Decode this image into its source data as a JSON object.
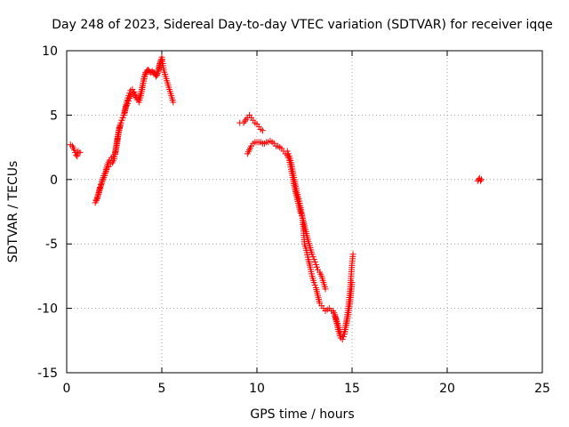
{
  "chart_data": {
    "type": "scatter",
    "title": "Day 248 of 2023, Sidereal Day-to-day VTEC variation (SDTVAR) for receiver iqqe",
    "xlabel": "GPS time / hours",
    "ylabel": "SDTVAR / TECUs",
    "xlim": [
      0,
      25
    ],
    "ylim": [
      -15,
      10
    ],
    "xticks": [
      0,
      5,
      10,
      15,
      20,
      25
    ],
    "yticks": [
      -15,
      -10,
      -5,
      0,
      5,
      10
    ],
    "xtick_labels": [
      "0",
      "5",
      "10",
      "15",
      "20",
      "25"
    ],
    "ytick_labels": [
      "-15",
      "-10",
      "-5",
      "0",
      "5",
      "10"
    ],
    "grid": true,
    "marker": "+",
    "color": "#ff0000",
    "series": [
      {
        "name": "SDTVAR",
        "tracks": [
          [
            [
              0.2,
              2.7
            ],
            [
              0.3,
              2.6
            ],
            [
              0.4,
              2.3
            ],
            [
              0.5,
              1.9
            ],
            [
              0.55,
              1.8
            ],
            [
              0.6,
              2.2
            ],
            [
              0.7,
              2.1
            ]
          ],
          [
            [
              1.5,
              -1.8
            ],
            [
              1.6,
              -1.5
            ],
            [
              1.7,
              -1.0
            ],
            [
              1.8,
              -0.5
            ],
            [
              1.9,
              0.0
            ],
            [
              2.0,
              0.3
            ],
            [
              2.1,
              0.8
            ],
            [
              2.2,
              1.0
            ],
            [
              2.3,
              1.2
            ],
            [
              2.4,
              1.3
            ],
            [
              2.5,
              1.6
            ],
            [
              2.6,
              2.6
            ],
            [
              2.7,
              3.5
            ],
            [
              2.8,
              4.2
            ],
            [
              2.9,
              4.6
            ],
            [
              3.0,
              5.0
            ],
            [
              3.1,
              5.6
            ],
            [
              3.2,
              5.9
            ],
            [
              3.3,
              6.3
            ],
            [
              3.4,
              6.6
            ],
            [
              3.5,
              6.7
            ],
            [
              3.6,
              6.5
            ],
            [
              3.7,
              6.2
            ],
            [
              3.8,
              6.0
            ],
            [
              3.9,
              6.5
            ],
            [
              4.0,
              7.3
            ],
            [
              4.1,
              8.0
            ],
            [
              4.2,
              8.4
            ],
            [
              4.3,
              8.5
            ],
            [
              4.4,
              8.3
            ],
            [
              4.5,
              8.4
            ],
            [
              4.6,
              8.3
            ],
            [
              4.7,
              8.0
            ],
            [
              4.8,
              8.4
            ],
            [
              4.9,
              9.0
            ],
            [
              5.0,
              9.5
            ],
            [
              5.05,
              9.0
            ],
            [
              5.1,
              8.5
            ],
            [
              5.2,
              8.0
            ],
            [
              5.3,
              7.5
            ],
            [
              5.4,
              7.0
            ],
            [
              5.5,
              6.5
            ],
            [
              5.6,
              6.0
            ]
          ],
          [
            [
              1.55,
              -1.6
            ],
            [
              1.65,
              -1.2
            ],
            [
              1.75,
              -0.6
            ],
            [
              1.85,
              -0.2
            ],
            [
              1.95,
              0.3
            ],
            [
              2.05,
              0.6
            ],
            [
              2.15,
              1.2
            ],
            [
              2.25,
              1.5
            ],
            [
              2.35,
              1.7
            ],
            [
              2.45,
              1.8
            ],
            [
              2.55,
              2.0
            ],
            [
              2.65,
              2.8
            ],
            [
              2.75,
              3.8
            ],
            [
              2.85,
              4.4
            ],
            [
              2.95,
              4.8
            ],
            [
              3.05,
              5.2
            ],
            [
              3.15,
              6.0
            ],
            [
              3.25,
              6.5
            ],
            [
              3.35,
              6.9
            ],
            [
              3.45,
              7.0
            ],
            [
              3.55,
              6.8
            ],
            [
              3.65,
              6.4
            ],
            [
              3.75,
              6.2
            ],
            [
              3.85,
              6.5
            ],
            [
              3.95,
              7.0
            ],
            [
              4.05,
              7.8
            ],
            [
              4.15,
              8.3
            ],
            [
              4.25,
              8.5
            ],
            [
              4.35,
              8.4
            ],
            [
              4.55,
              8.3
            ],
            [
              4.75,
              8.1
            ],
            [
              4.85,
              8.6
            ],
            [
              4.95,
              9.2
            ],
            [
              5.0,
              9.3
            ]
          ],
          [
            [
              9.1,
              4.4
            ],
            [
              9.3,
              4.4
            ],
            [
              9.5,
              4.8
            ],
            [
              9.6,
              5.0
            ],
            [
              9.7,
              4.8
            ],
            [
              9.8,
              4.6
            ],
            [
              9.9,
              4.4
            ],
            [
              10.0,
              4.3
            ],
            [
              10.1,
              4.1
            ],
            [
              10.2,
              3.9
            ],
            [
              10.3,
              3.8
            ]
          ],
          [
            [
              9.5,
              2.0
            ],
            [
              9.6,
              2.3
            ],
            [
              9.7,
              2.6
            ],
            [
              9.8,
              2.8
            ],
            [
              9.9,
              2.9
            ],
            [
              10.0,
              2.9
            ],
            [
              10.1,
              2.9
            ],
            [
              10.2,
              2.9
            ],
            [
              10.3,
              2.8
            ],
            [
              10.4,
              2.8
            ],
            [
              10.5,
              2.9
            ],
            [
              10.6,
              2.9
            ],
            [
              10.7,
              3.0
            ],
            [
              10.8,
              2.9
            ],
            [
              10.9,
              2.8
            ],
            [
              11.0,
              2.6
            ],
            [
              11.1,
              2.6
            ],
            [
              11.2,
              2.5
            ],
            [
              11.3,
              2.4
            ],
            [
              11.4,
              2.2
            ],
            [
              11.5,
              2.0
            ],
            [
              11.6,
              1.9
            ],
            [
              11.7,
              1.5
            ],
            [
              11.8,
              0.8
            ],
            [
              11.9,
              0.0
            ],
            [
              12.0,
              -0.8
            ],
            [
              12.1,
              -1.4
            ],
            [
              12.2,
              -2.0
            ],
            [
              12.3,
              -2.6
            ],
            [
              12.4,
              -3.0
            ],
            [
              12.5,
              -3.6
            ],
            [
              12.6,
              -4.2
            ],
            [
              12.7,
              -4.8
            ],
            [
              12.8,
              -5.3
            ],
            [
              12.9,
              -5.8
            ],
            [
              13.0,
              -6.2
            ],
            [
              13.1,
              -6.6
            ],
            [
              13.2,
              -7.0
            ],
            [
              13.3,
              -7.2
            ],
            [
              13.4,
              -7.5
            ],
            [
              13.5,
              -8.0
            ],
            [
              13.6,
              -8.5
            ]
          ],
          [
            [
              11.6,
              2.2
            ],
            [
              11.7,
              1.8
            ],
            [
              11.8,
              1.3
            ],
            [
              11.9,
              0.5
            ],
            [
              12.0,
              -0.2
            ],
            [
              12.1,
              -1.0
            ],
            [
              12.2,
              -1.5
            ],
            [
              12.3,
              -2.2
            ],
            [
              12.4,
              -3.0
            ],
            [
              12.45,
              -4.0
            ],
            [
              12.5,
              -5.0
            ],
            [
              12.6,
              -5.5
            ],
            [
              12.7,
              -6.2
            ],
            [
              12.8,
              -6.8
            ],
            [
              12.9,
              -7.5
            ],
            [
              13.0,
              -8.0
            ],
            [
              13.1,
              -8.4
            ],
            [
              13.2,
              -9.0
            ],
            [
              13.3,
              -9.6
            ],
            [
              13.4,
              -9.8
            ],
            [
              13.5,
              -10.0
            ],
            [
              13.6,
              -10.2
            ],
            [
              13.7,
              -10.1
            ],
            [
              13.8,
              -10.0
            ],
            [
              13.9,
              -10.2
            ],
            [
              14.0,
              -10.2
            ],
            [
              14.1,
              -10.5
            ],
            [
              14.2,
              -11.0
            ],
            [
              14.3,
              -11.5
            ],
            [
              14.4,
              -12.0
            ],
            [
              14.5,
              -12.2
            ],
            [
              14.6,
              -11.8
            ],
            [
              14.7,
              -11.0
            ],
            [
              14.8,
              -10.0
            ],
            [
              14.9,
              -8.5
            ],
            [
              14.95,
              -7.5
            ],
            [
              15.0,
              -6.5
            ],
            [
              15.05,
              -5.8
            ]
          ],
          [
            [
              14.1,
              -10.6
            ],
            [
              14.2,
              -11.2
            ],
            [
              14.3,
              -11.8
            ],
            [
              14.4,
              -12.3
            ],
            [
              14.5,
              -12.4
            ],
            [
              14.6,
              -12.0
            ],
            [
              14.7,
              -11.3
            ],
            [
              14.8,
              -10.5
            ],
            [
              14.9,
              -9.5
            ],
            [
              15.0,
              -8.0
            ]
          ],
          [
            [
              21.6,
              -0.1
            ],
            [
              21.65,
              0.0
            ],
            [
              21.7,
              0.1
            ],
            [
              21.75,
              -0.1
            ],
            [
              21.8,
              0.0
            ]
          ]
        ]
      }
    ]
  }
}
